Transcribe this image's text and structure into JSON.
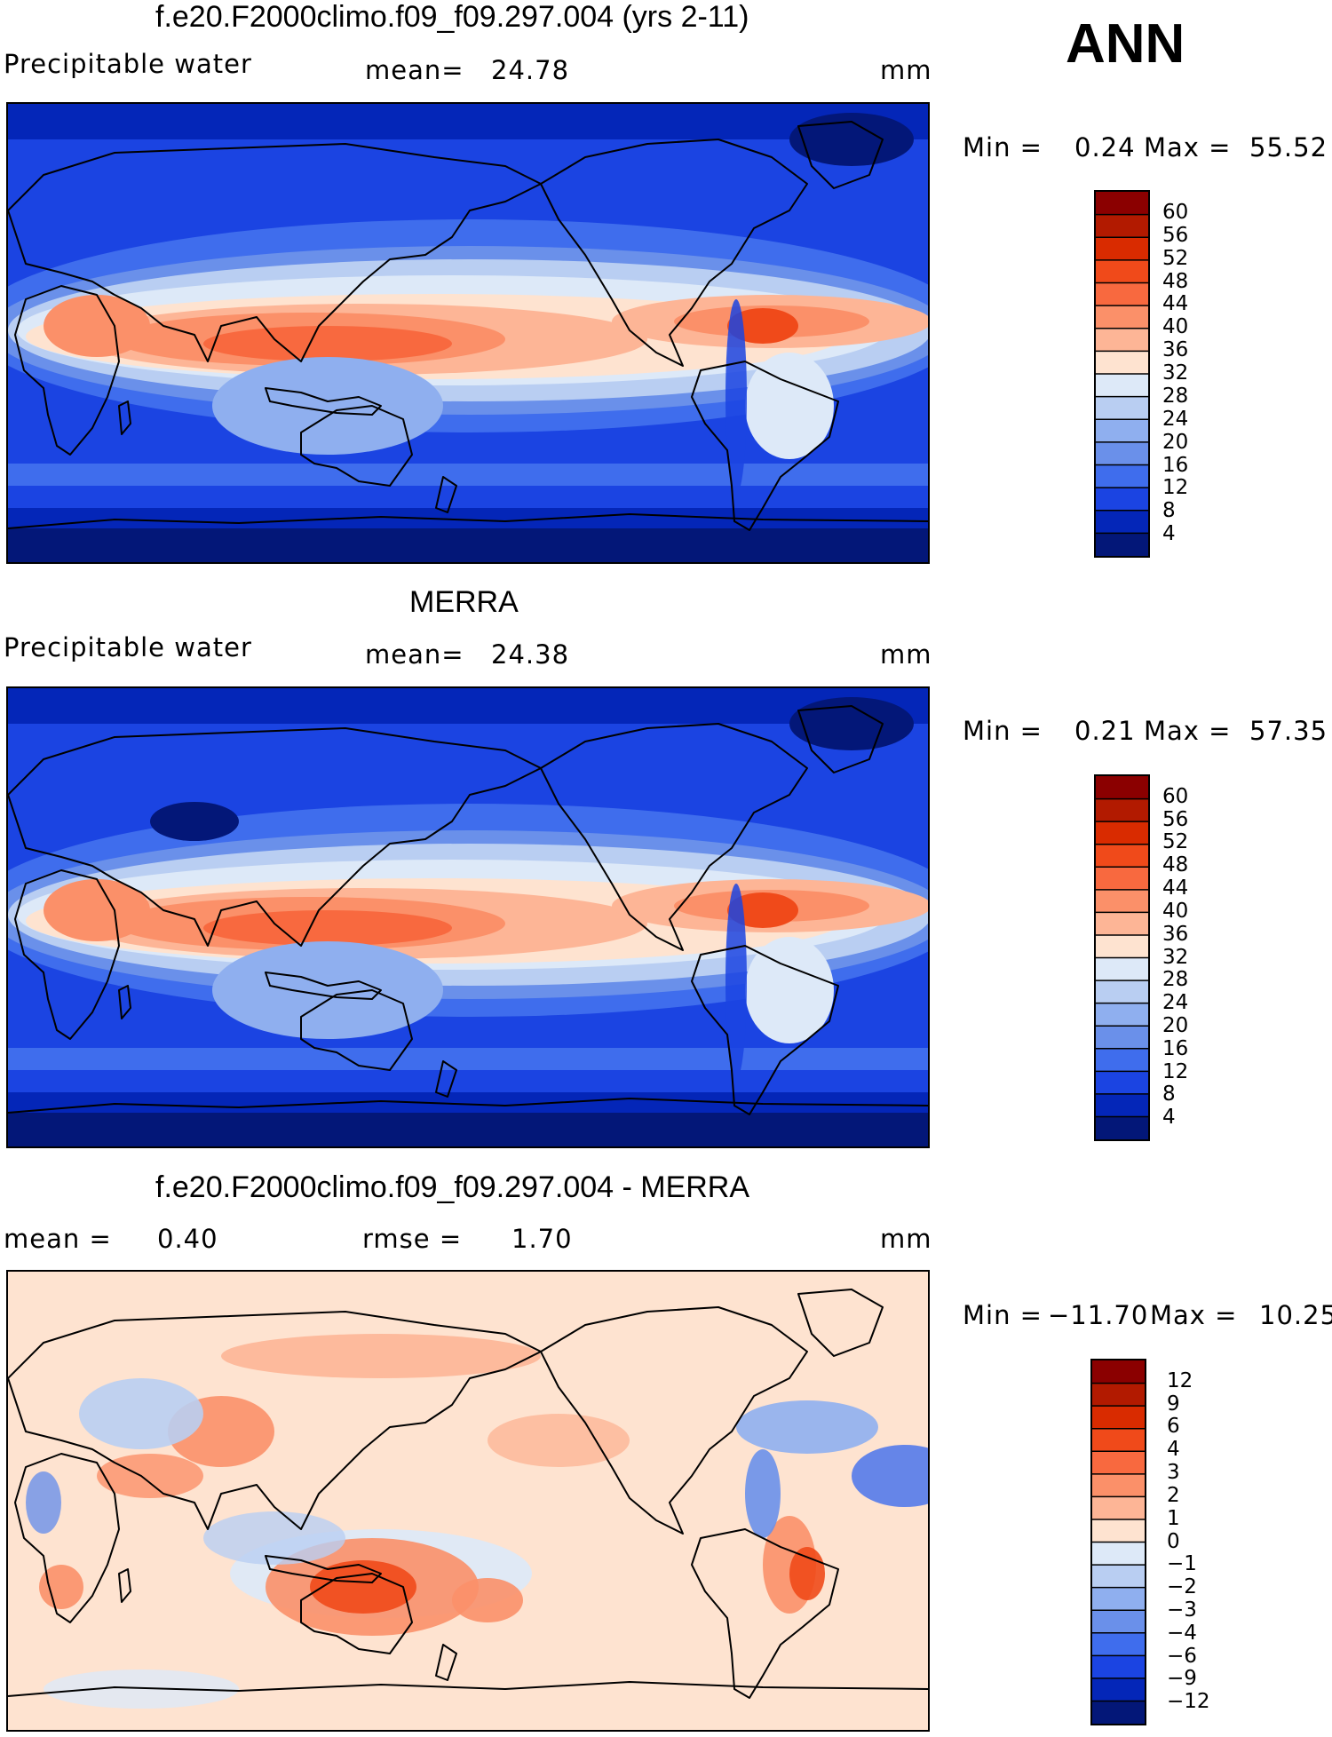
{
  "season": "ANN",
  "panels": [
    {
      "id": "model",
      "title": "f.e20.F2000climo.f09_f09.297.004 (yrs 2-11)",
      "left_label": "Precipitable  water",
      "mid_label": "mean=",
      "mid_value": "24.78",
      "right_label": "mm",
      "min_label": "Min  =",
      "min_value": "0.24",
      "max_label": "Max  =",
      "max_value": "55.52",
      "colorbar": {
        "ticks": [
          "60",
          "56",
          "52",
          "48",
          "44",
          "40",
          "36",
          "32",
          "28",
          "24",
          "20",
          "16",
          "12",
          "8",
          "4"
        ],
        "colors": [
          "#8b0000",
          "#b21a00",
          "#d92b00",
          "#f04a1a",
          "#f8693f",
          "#fb9069",
          "#fdb596",
          "#fee3d0",
          "#dde9f8",
          "#b9cef2",
          "#8fafef",
          "#6a90ea",
          "#3f6ded",
          "#1b44e2",
          "#0426b8",
          "#031778"
        ]
      }
    },
    {
      "id": "obs",
      "title": "MERRA",
      "left_label": "Precipitable  water",
      "mid_label": "mean=",
      "mid_value": "24.38",
      "right_label": "mm",
      "min_label": "Min  =",
      "min_value": "0.21",
      "max_label": "Max  =",
      "max_value": "57.35",
      "colorbar": {
        "ticks": [
          "60",
          "56",
          "52",
          "48",
          "44",
          "40",
          "36",
          "32",
          "28",
          "24",
          "20",
          "16",
          "12",
          "8",
          "4"
        ],
        "colors": [
          "#8b0000",
          "#b21a00",
          "#d92b00",
          "#f04a1a",
          "#f8693f",
          "#fb9069",
          "#fdb596",
          "#fee3d0",
          "#dde9f8",
          "#b9cef2",
          "#8fafef",
          "#6a90ea",
          "#3f6ded",
          "#1b44e2",
          "#0426b8",
          "#031778"
        ]
      }
    },
    {
      "id": "diff",
      "title": "f.e20.F2000climo.f09_f09.297.004 - MERRA",
      "left_label": "mean  =",
      "left_value": "0.40",
      "mid_label": "rmse  =",
      "mid_value": "1.70",
      "right_label": "mm",
      "min_label": "Min  =",
      "min_value": "−11.70",
      "max_label": "Max  =",
      "max_value": "10.25",
      "colorbar": {
        "ticks": [
          "12",
          "9",
          "6",
          "4",
          "3",
          "2",
          "1",
          "0",
          "−1",
          "−2",
          "−3",
          "−4",
          "−6",
          "−9",
          "−12"
        ],
        "colors": [
          "#8b0000",
          "#b21a00",
          "#d92b00",
          "#f04a1a",
          "#f8693f",
          "#fb9069",
          "#fdb596",
          "#fee3d0",
          "#dde9f8",
          "#b9cef2",
          "#8fafef",
          "#6a90ea",
          "#3f6ded",
          "#1b44e2",
          "#0426b8",
          "#031778"
        ]
      }
    }
  ]
}
